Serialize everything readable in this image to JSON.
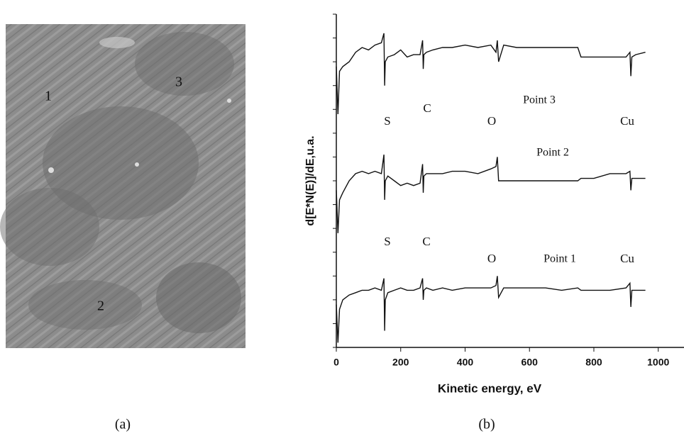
{
  "image": {
    "labels": [
      "1",
      "2",
      "3"
    ],
    "caption": "(a)"
  },
  "chart_data": {
    "type": "line",
    "caption": "(b)",
    "xlabel": "Kinetic energy, eV",
    "ylabel": "d[E*N(E)]/dE,u.a.",
    "xlim": [
      0,
      1080
    ],
    "xticks": [
      0,
      200,
      400,
      600,
      800,
      1000
    ],
    "ylim": [
      0,
      14
    ],
    "yticks": [
      0,
      1,
      2,
      3,
      4,
      5,
      6,
      7,
      8,
      9,
      10,
      11,
      12,
      13,
      14
    ],
    "annotations": [
      "S",
      "C",
      "O",
      "Cu",
      "S",
      "C",
      "O",
      "Cu"
    ],
    "x": [
      0,
      5,
      10,
      20,
      40,
      60,
      80,
      100,
      120,
      140,
      148,
      150,
      152,
      160,
      180,
      200,
      220,
      240,
      260,
      268,
      270,
      272,
      280,
      300,
      330,
      360,
      400,
      440,
      480,
      496,
      500,
      504,
      520,
      560,
      600,
      650,
      700,
      750,
      760,
      800,
      850,
      900,
      912,
      915,
      918,
      930,
      960
    ],
    "series": [
      {
        "name": "Point 3",
        "color": "#111111",
        "values": [
          11.8,
          9.8,
          11.6,
          11.8,
          12.0,
          12.4,
          12.6,
          12.5,
          12.7,
          12.8,
          13.2,
          11.0,
          12.0,
          12.2,
          12.3,
          12.5,
          12.2,
          12.3,
          12.3,
          12.9,
          11.7,
          12.3,
          12.4,
          12.5,
          12.6,
          12.6,
          12.7,
          12.6,
          12.7,
          12.4,
          12.9,
          12.0,
          12.7,
          12.6,
          12.6,
          12.6,
          12.6,
          12.6,
          12.2,
          12.2,
          12.2,
          12.2,
          12.4,
          11.4,
          12.2,
          12.3,
          12.4
        ]
      },
      {
        "name": "Point 2",
        "color": "#111111",
        "values": [
          6.6,
          4.8,
          6.2,
          6.5,
          7.0,
          7.3,
          7.4,
          7.3,
          7.4,
          7.3,
          8.1,
          6.2,
          7.0,
          7.2,
          7.0,
          6.8,
          6.9,
          6.8,
          6.9,
          7.7,
          6.5,
          7.2,
          7.3,
          7.3,
          7.3,
          7.4,
          7.4,
          7.3,
          7.5,
          7.6,
          8.0,
          7.0,
          7.0,
          7.0,
          7.0,
          7.0,
          7.0,
          7.0,
          7.1,
          7.1,
          7.3,
          7.3,
          7.4,
          6.6,
          7.1,
          7.1,
          7.1
        ]
      },
      {
        "name": "Point 1",
        "color": "#111111",
        "values": [
          1.8,
          0.2,
          1.6,
          2.0,
          2.2,
          2.3,
          2.4,
          2.4,
          2.5,
          2.4,
          2.9,
          0.7,
          2.0,
          2.3,
          2.4,
          2.5,
          2.4,
          2.4,
          2.5,
          2.9,
          2.0,
          2.4,
          2.5,
          2.4,
          2.5,
          2.4,
          2.5,
          2.5,
          2.5,
          2.6,
          3.0,
          2.1,
          2.5,
          2.5,
          2.5,
          2.5,
          2.4,
          2.5,
          2.4,
          2.4,
          2.4,
          2.5,
          2.7,
          1.7,
          2.4,
          2.4,
          2.4
        ]
      }
    ]
  }
}
